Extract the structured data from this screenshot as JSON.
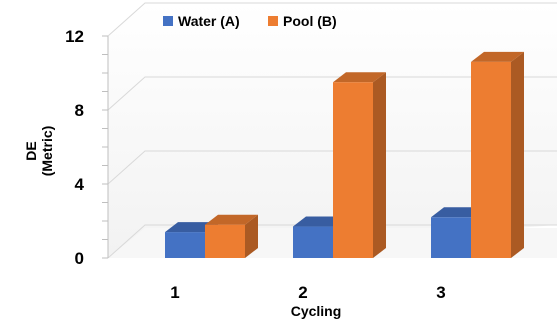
{
  "chart_data": {
    "type": "bar",
    "title": "",
    "xlabel": "Cycling",
    "ylabel": [
      "DE",
      "(Metric)"
    ],
    "categories": [
      "1",
      "2",
      "3"
    ],
    "ylim": [
      0,
      12
    ],
    "yticks": [
      "0",
      "4",
      "8",
      "12"
    ],
    "legend_position": "top",
    "grid": false,
    "series": [
      {
        "name": "Water (A)",
        "values": [
          1.4,
          1.7,
          2.2
        ],
        "color": "#4472C4"
      },
      {
        "name": "Pool (B)",
        "values": [
          1.8,
          9.5,
          10.6
        ],
        "color": "#ED7D31"
      }
    ]
  }
}
